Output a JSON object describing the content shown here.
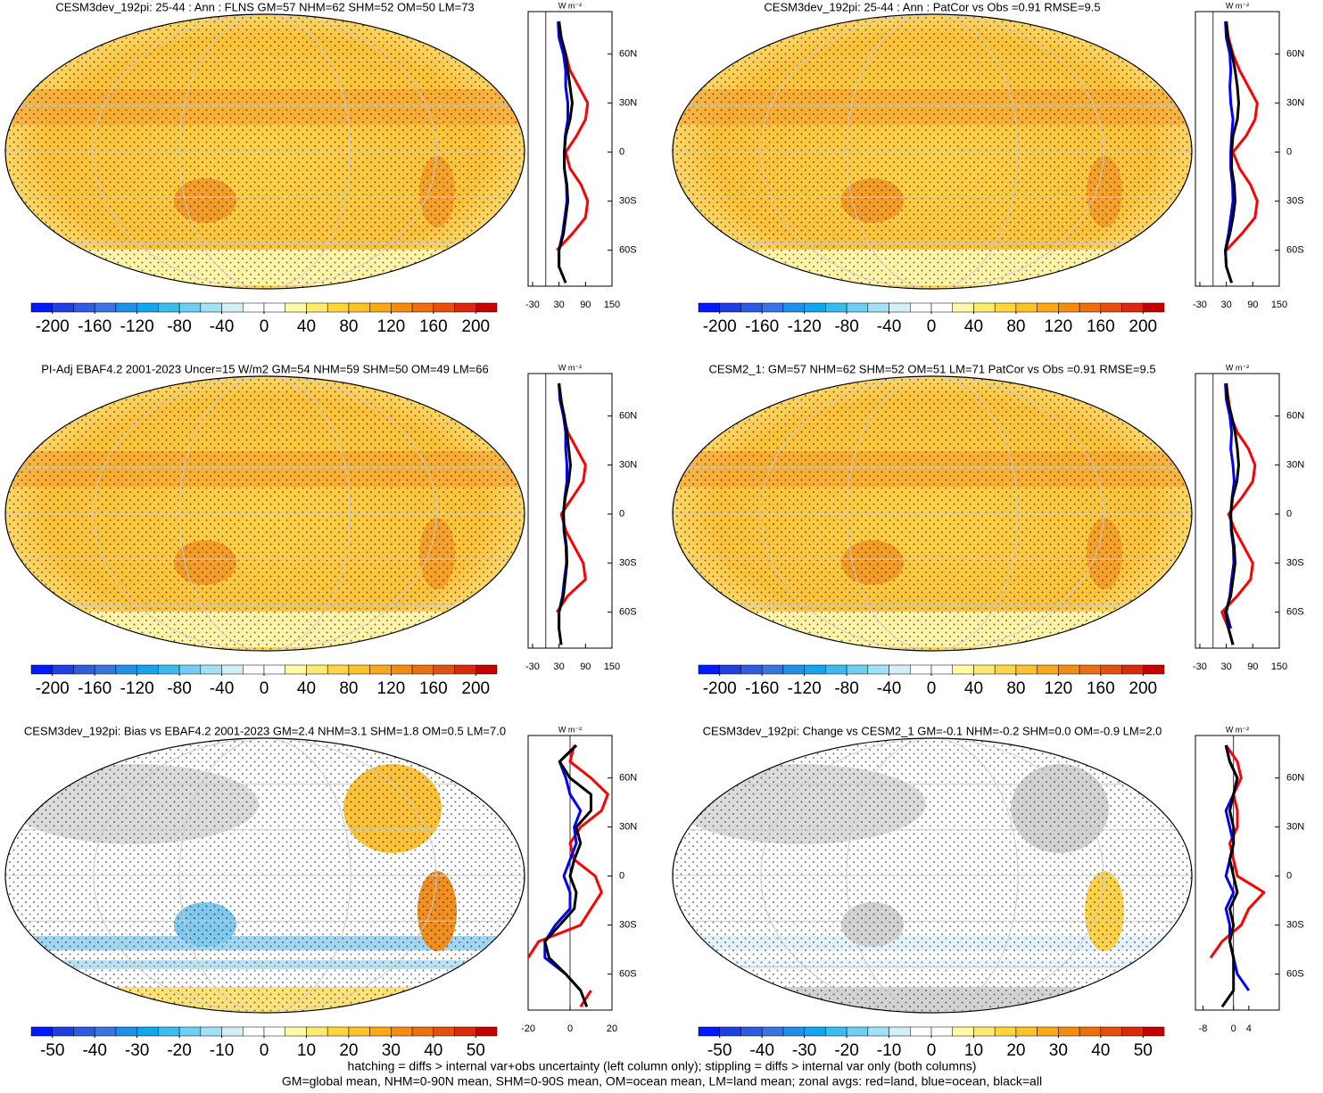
{
  "panels": [
    {
      "title": "CESM3dev_192pi: 25-44 : Ann : FLNS GM=57 NHM=62 SHM=52 OM=50 LM=73",
      "colorbar": {
        "lim": [
          -220,
          220
        ],
        "ticks": [
          -200,
          -160,
          -120,
          -80,
          -40,
          0,
          40,
          80,
          120,
          160,
          200
        ],
        "colors": [
          "#0019ff",
          "#1f3fe0",
          "#2f5bde",
          "#3a74e2",
          "#1f8fe8",
          "#14a6ec",
          "#3cbcee",
          "#6fcff2",
          "#a2e0f5",
          "#d2eff8",
          "#ffffff",
          "#ffffff",
          "#fff9a8",
          "#ffea70",
          "#ffd640",
          "#fdc12a",
          "#f9a81a",
          "#f38d12",
          "#ec7010",
          "#e45010",
          "#d92a10",
          "#c40000"
        ]
      },
      "zonal": {
        "unit": "W m⁻²",
        "xlim": [
          -40,
          150
        ],
        "xticks": [
          -30,
          30,
          90,
          150
        ],
        "ylim": [
          -82,
          86
        ],
        "yticks": [
          {
            "value": 60,
            "label": "60N"
          },
          {
            "value": 30,
            "label": "30N"
          },
          0,
          {
            "value": -30,
            "label": "30S"
          },
          {
            "value": -60,
            "label": "60S"
          }
        ],
        "y": [
          -80,
          -70,
          -60,
          -50,
          -40,
          -30,
          -20,
          -10,
          0,
          10,
          20,
          30,
          40,
          50,
          60,
          70,
          80
        ],
        "series": [
          {
            "color": "#ff0000",
            "values": [
              45,
              null,
              25,
              60,
              90,
              95,
              80,
              55,
              45,
              70,
              90,
              95,
              75,
              55,
              45,
              35,
              30
            ]
          },
          {
            "color": "#0000ff",
            "values": [
              null,
              30,
              30,
              38,
              43,
              48,
              47,
              42,
              42,
              44,
              50,
              50,
              45,
              45,
              40,
              30,
              28
            ]
          },
          {
            "color": "#000000",
            "values": [
              45,
              30,
              30,
              40,
              45,
              50,
              48,
              42,
              42,
              45,
              55,
              60,
              55,
              50,
              45,
              35,
              30
            ]
          }
        ]
      }
    },
    {
      "title": "CESM3dev_192pi: 25-44 : Ann : PatCor vs Obs =0.91 RMSE=9.5",
      "colorbar": {
        "lim": [
          -220,
          220
        ],
        "ticks": [
          -200,
          -160,
          -120,
          -80,
          -40,
          0,
          40,
          80,
          120,
          160,
          200
        ],
        "colors": [
          "#0019ff",
          "#1f3fe0",
          "#2f5bde",
          "#3a74e2",
          "#1f8fe8",
          "#14a6ec",
          "#3cbcee",
          "#6fcff2",
          "#a2e0f5",
          "#d2eff8",
          "#ffffff",
          "#ffffff",
          "#fff9a8",
          "#ffea70",
          "#ffd640",
          "#fdc12a",
          "#f9a81a",
          "#f38d12",
          "#ec7010",
          "#e45010",
          "#d92a10",
          "#c40000"
        ]
      },
      "zonal": {
        "unit": "W m⁻²",
        "xlim": [
          -40,
          150
        ],
        "xticks": [
          -30,
          30,
          90,
          150
        ],
        "ylim": [
          -82,
          86
        ],
        "yticks": [
          {
            "value": 60,
            "label": "60N"
          },
          {
            "value": 30,
            "label": "30N"
          },
          0,
          {
            "value": -30,
            "label": "30S"
          },
          {
            "value": -60,
            "label": "60S"
          }
        ],
        "y": [
          -80,
          -70,
          -60,
          -50,
          -40,
          -30,
          -20,
          -10,
          0,
          10,
          20,
          30,
          40,
          50,
          60,
          70,
          80
        ],
        "series": [
          {
            "color": "#ff0000",
            "values": [
              40,
              null,
              30,
              65,
              95,
              100,
              85,
              60,
              45,
              75,
              95,
              100,
              80,
              60,
              45,
              35,
              30
            ]
          },
          {
            "color": "#0000ff",
            "values": [
              null,
              30,
              28,
              35,
              40,
              45,
              44,
              40,
              40,
              42,
              45,
              40,
              38,
              40,
              38,
              30,
              28
            ]
          },
          {
            "color": "#000000",
            "values": [
              42,
              30,
              28,
              38,
              45,
              50,
              48,
              42,
              42,
              45,
              55,
              58,
              55,
              50,
              43,
              33,
              30
            ]
          }
        ]
      }
    },
    {
      "title": "PI-Adj EBAF4.2 2001-2023 Uncer=15 W/m2 GM=54 NHM=59 SHM=50 OM=49 LM=66",
      "colorbar": {
        "lim": [
          -220,
          220
        ],
        "ticks": [
          -200,
          -160,
          -120,
          -80,
          -40,
          0,
          40,
          80,
          120,
          160,
          200
        ],
        "colors": [
          "#0019ff",
          "#1f3fe0",
          "#2f5bde",
          "#3a74e2",
          "#1f8fe8",
          "#14a6ec",
          "#3cbcee",
          "#6fcff2",
          "#a2e0f5",
          "#d2eff8",
          "#ffffff",
          "#ffffff",
          "#fff9a8",
          "#ffea70",
          "#ffd640",
          "#fdc12a",
          "#f9a81a",
          "#f38d12",
          "#ec7010",
          "#e45010",
          "#d92a10",
          "#c40000"
        ]
      },
      "zonal": {
        "unit": "W m⁻²",
        "xlim": [
          -40,
          150
        ],
        "xticks": [
          -30,
          30,
          90,
          150
        ],
        "ylim": [
          -82,
          86
        ],
        "yticks": [
          {
            "value": 60,
            "label": "60N"
          },
          {
            "value": 30,
            "label": "30N"
          },
          0,
          {
            "value": -30,
            "label": "30S"
          },
          {
            "value": -60,
            "label": "60S"
          }
        ],
        "y": [
          -80,
          -70,
          -60,
          -50,
          -40,
          -30,
          -20,
          -10,
          0,
          10,
          20,
          30,
          40,
          50,
          60,
          70,
          80
        ],
        "series": [
          {
            "color": "#ff0000",
            "values": [
              35,
              null,
              25,
              50,
              90,
              85,
              65,
              45,
              35,
              60,
              85,
              90,
              70,
              50,
              40,
              35,
              30
            ]
          },
          {
            "color": "#0000ff",
            "values": [
              null,
              30,
              30,
              38,
              42,
              47,
              46,
              41,
              40,
              43,
              48,
              48,
              45,
              45,
              40,
              32,
              30
            ]
          },
          {
            "color": "#000000",
            "values": [
              35,
              30,
              30,
              40,
              44,
              48,
              47,
              42,
              40,
              44,
              52,
              56,
              52,
              48,
              42,
              34,
              30
            ]
          }
        ]
      }
    },
    {
      "title": "CESM2_1: GM=57 NHM=62 SHM=52 OM=51 LM=71 PatCor vs Obs =0.91 RMSE=9.5",
      "colorbar": {
        "lim": [
          -220,
          220
        ],
        "ticks": [
          -200,
          -160,
          -120,
          -80,
          -40,
          0,
          40,
          80,
          120,
          160,
          200
        ],
        "colors": [
          "#0019ff",
          "#1f3fe0",
          "#2f5bde",
          "#3a74e2",
          "#1f8fe8",
          "#14a6ec",
          "#3cbcee",
          "#6fcff2",
          "#a2e0f5",
          "#d2eff8",
          "#ffffff",
          "#ffffff",
          "#fff9a8",
          "#ffea70",
          "#ffd640",
          "#fdc12a",
          "#f9a81a",
          "#f38d12",
          "#ec7010",
          "#e45010",
          "#d92a10",
          "#c40000"
        ]
      },
      "zonal": {
        "unit": "W m⁻²",
        "xlim": [
          -40,
          150
        ],
        "xticks": [
          -30,
          30,
          90,
          150
        ],
        "ylim": [
          -82,
          86
        ],
        "yticks": [
          {
            "value": 60,
            "label": "60N"
          },
          {
            "value": 30,
            "label": "30N"
          },
          0,
          {
            "value": -30,
            "label": "30S"
          },
          {
            "value": -60,
            "label": "60S"
          }
        ],
        "y": [
          -80,
          -70,
          -60,
          -50,
          -40,
          -30,
          -20,
          -10,
          0,
          10,
          20,
          30,
          40,
          50,
          60,
          70,
          80
        ],
        "series": [
          {
            "color": "#ff0000",
            "values": [
              45,
              35,
              20,
              55,
              85,
              90,
              70,
              50,
              35,
              65,
              90,
              95,
              80,
              55,
              40,
              35,
              30
            ]
          },
          {
            "color": "#0000ff",
            "values": [
              null,
              40,
              30,
              38,
              42,
              47,
              46,
              41,
              40,
              43,
              48,
              45,
              40,
              42,
              38,
              30,
              28
            ]
          },
          {
            "color": "#000000",
            "values": [
              45,
              35,
              28,
              40,
              45,
              50,
              48,
              42,
              40,
              44,
              54,
              58,
              55,
              50,
              42,
              33,
              30
            ]
          }
        ]
      }
    },
    {
      "title": "CESM3dev_192pi: Bias vs EBAF4.2 2001-2023 GM=2.4 NHM=3.1 SHM=1.8 OM=0.5 LM=7.0",
      "colorbar": {
        "lim": [
          -55,
          55
        ],
        "ticks": [
          -50,
          -40,
          -30,
          -20,
          -10,
          0,
          10,
          20,
          30,
          40,
          50
        ],
        "colors": [
          "#0019ff",
          "#1f3fe0",
          "#2f5bde",
          "#3a74e2",
          "#1f8fe8",
          "#14a6ec",
          "#3cbcee",
          "#6fcff2",
          "#a2e0f5",
          "#d2eff8",
          "#ffffff",
          "#ffffff",
          "#fff9a8",
          "#ffea70",
          "#ffd640",
          "#fdc12a",
          "#f9a81a",
          "#f38d12",
          "#ec7010",
          "#e45010",
          "#d92a10",
          "#c40000"
        ]
      },
      "zonal": {
        "unit": "W m⁻²",
        "xlim": [
          -20,
          20
        ],
        "xticks": [
          -20,
          0,
          20
        ],
        "ylim": [
          -82,
          86
        ],
        "yticks": [
          {
            "value": 60,
            "label": "60N"
          },
          {
            "value": 30,
            "label": "30N"
          },
          0,
          {
            "value": -30,
            "label": "30S"
          },
          {
            "value": -60,
            "label": "60S"
          }
        ],
        "y": [
          -80,
          -70,
          -60,
          -50,
          -40,
          -30,
          -20,
          -10,
          0,
          10,
          20,
          30,
          40,
          50,
          60,
          70,
          80
        ],
        "series": [
          {
            "color": "#ff0000",
            "values": [
              5,
              10,
              null,
              -20,
              -15,
              5,
              10,
              15,
              12,
              2,
              0,
              5,
              15,
              18,
              10,
              0,
              2
            ]
          },
          {
            "color": "#0000ff",
            "values": [
              null,
              5,
              -2,
              -12,
              -12,
              -7,
              0,
              0,
              -3,
              0,
              3,
              2,
              5,
              0,
              -2,
              -5,
              3
            ]
          },
          {
            "color": "#000000",
            "values": [
              8,
              5,
              -2,
              -10,
              -12,
              -5,
              2,
              3,
              0,
              2,
              5,
              3,
              10,
              10,
              0,
              -5,
              3
            ]
          }
        ]
      }
    },
    {
      "title": "CESM3dev_192pi: Change vs CESM2_1 GM=-0.1 NHM=-0.2 SHM=0.0 OM=-0.9 LM=2.0",
      "colorbar": {
        "lim": [
          -55,
          55
        ],
        "ticks": [
          -50,
          -40,
          -30,
          -20,
          -10,
          0,
          10,
          20,
          30,
          40,
          50
        ],
        "colors": [
          "#0019ff",
          "#1f3fe0",
          "#2f5bde",
          "#3a74e2",
          "#1f8fe8",
          "#14a6ec",
          "#3cbcee",
          "#6fcff2",
          "#a2e0f5",
          "#d2eff8",
          "#ffffff",
          "#ffffff",
          "#fff9a8",
          "#ffea70",
          "#ffd640",
          "#fdc12a",
          "#f9a81a",
          "#f38d12",
          "#ec7010",
          "#e45010",
          "#d92a10",
          "#c40000"
        ]
      },
      "zonal": {
        "unit": "W m⁻²",
        "xlim": [
          -10,
          12
        ],
        "xticks": [
          -8,
          0,
          4
        ],
        "ylim": [
          -82,
          86
        ],
        "yticks": [
          {
            "value": 60,
            "label": "60N"
          },
          {
            "value": 30,
            "label": "30N"
          },
          0,
          {
            "value": -30,
            "label": "30S"
          },
          {
            "value": -60,
            "label": "60S"
          }
        ],
        "y": [
          -80,
          -70,
          -60,
          -50,
          -40,
          -30,
          -20,
          -10,
          0,
          10,
          20,
          30,
          40,
          50,
          60,
          70,
          80
        ],
        "series": [
          {
            "color": "#ff0000",
            "values": [
              -2,
              null,
              null,
              -6,
              -3,
              2,
              4,
              8,
              1,
              0,
              -1,
              1,
              1,
              0,
              2,
              1,
              -2
            ]
          },
          {
            "color": "#0000ff",
            "values": [
              null,
              4,
              1,
              0,
              -1,
              -1,
              -2,
              0,
              -2,
              -1,
              0,
              -1,
              -2,
              0,
              1,
              -1,
              -2
            ]
          },
          {
            "color": "#000000",
            "values": [
              -3,
              0,
              0,
              0,
              -1,
              0,
              -1,
              1,
              0,
              -1,
              0,
              0,
              -1,
              0,
              1,
              -1,
              -2
            ]
          }
        ]
      }
    }
  ],
  "footer": [
    "hatching = diffs > internal var+obs uncertainty (left column only); stippling = diffs > internal var only (both columns)",
    "GM=global mean, NHM=0-90N mean, SHM=0-90S mean, OM=ocean mean, LM=land mean; zonal avgs: red=land, blue=ocean, black=all"
  ]
}
